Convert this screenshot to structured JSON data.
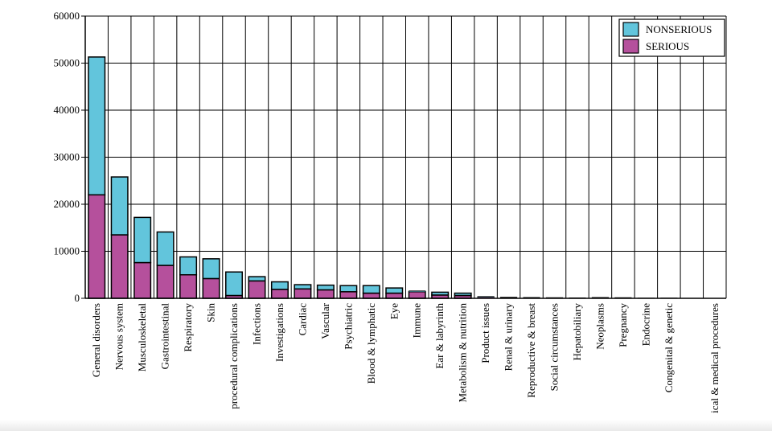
{
  "chart_data": {
    "type": "bar",
    "stacked": true,
    "title": "",
    "xlabel": "",
    "ylabel": "",
    "ylim": [
      0,
      60000
    ],
    "yticks": [
      "0",
      "10000",
      "20000",
      "30000",
      "40000",
      "50000",
      "60000"
    ],
    "grid": true,
    "legend_position": "top-right",
    "categories": [
      "General disorders",
      "Nervous system",
      "Musculoskeletal",
      "Gastrointestinal",
      "Respiratory",
      "Skin",
      "procedural complications",
      "Infections",
      "Investigations",
      "Cardiac",
      "Vascular",
      "Psychiatric",
      "Blood & lymphatic",
      "Eye",
      "Immune",
      "Ear & labyrinth",
      "Metabolism & nutrition",
      "Product issues",
      "Renal & urinary",
      "Reproductive & breast",
      "Social circumstances",
      "Hepatobiliary",
      "Neoplasms",
      "Pregnancy",
      "Endocrine",
      "Congenital & genetic",
      "",
      "ical & medical procedures"
    ],
    "series": [
      {
        "name": "SERIOUS",
        "color": "#b5509c",
        "values": [
          22000,
          13500,
          7600,
          7000,
          5000,
          4200,
          600,
          3700,
          1900,
          2000,
          1800,
          1400,
          1100,
          1100,
          1400,
          700,
          600,
          250,
          150,
          120,
          80,
          60,
          150,
          120,
          40,
          40,
          30,
          10
        ]
      },
      {
        "name": "NONSERIOUS",
        "color": "#62c5dc",
        "values": [
          29300,
          12300,
          9600,
          7100,
          3800,
          4200,
          5000,
          900,
          1600,
          900,
          1000,
          1300,
          1600,
          1100,
          200,
          600,
          500,
          150,
          100,
          80,
          80,
          60,
          50,
          40,
          30,
          40,
          10,
          5
        ]
      }
    ]
  }
}
